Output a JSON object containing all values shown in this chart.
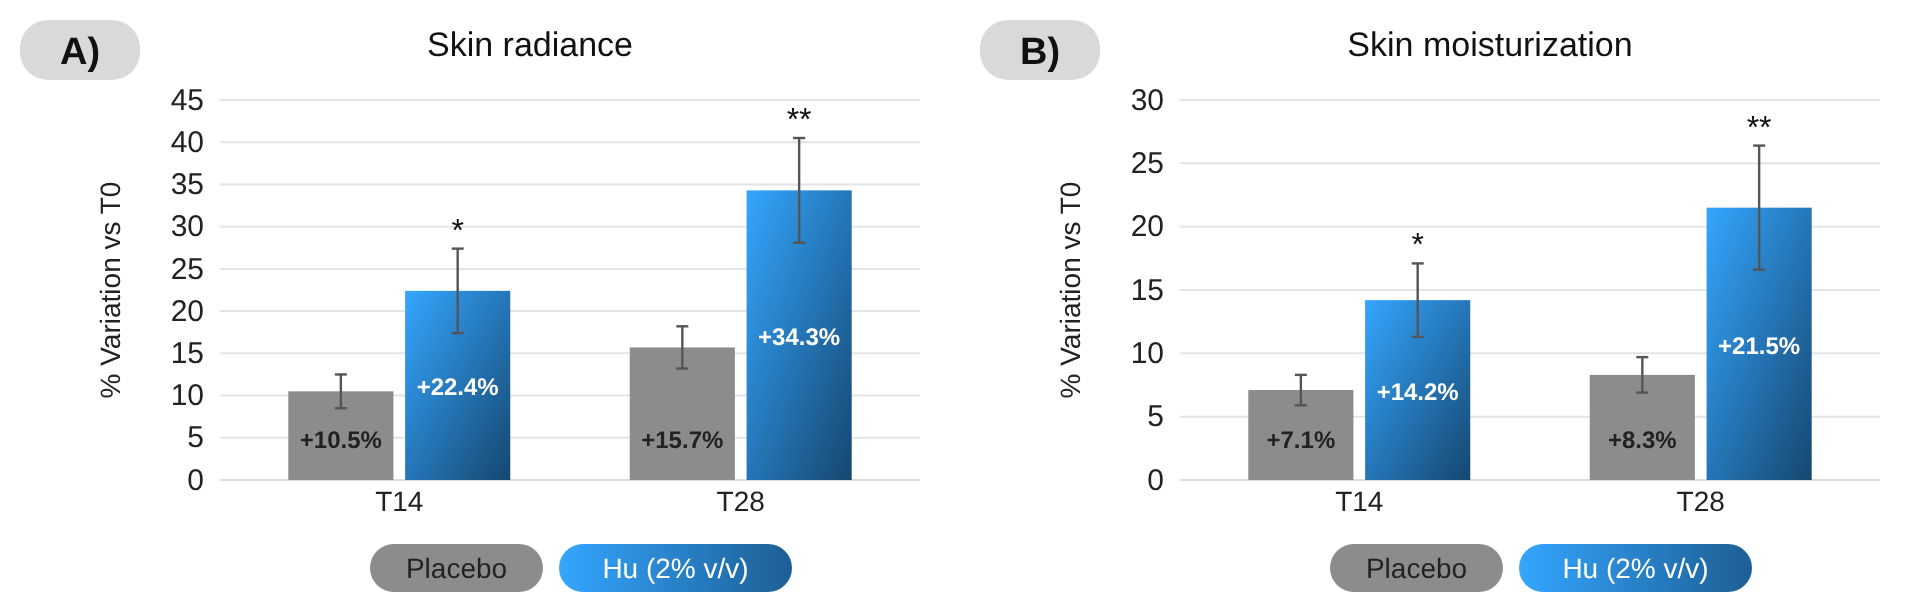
{
  "chart_data": [
    {
      "type": "bar",
      "title": "Skin radiance",
      "ylabel": "% Variation vs T0",
      "categories": [
        "T14",
        "T28"
      ],
      "series": [
        {
          "name": "Placebo",
          "color": "#8c8c8c",
          "values": [
            10.5,
            15.7
          ],
          "errors": [
            2,
            2.5
          ],
          "value_labels": [
            "+10.5%",
            "+15.7%"
          ]
        },
        {
          "name": "Hu (2% v/v)",
          "color": "#2a86d4",
          "values": [
            22.4,
            34.3
          ],
          "errors": [
            5,
            6.2
          ],
          "value_labels": [
            "+22.4%",
            "+34.3%"
          ]
        }
      ],
      "ylim": [
        0,
        45
      ],
      "yticks": [
        0,
        5,
        10,
        15,
        20,
        25,
        30,
        35,
        40,
        45
      ],
      "grid": "y",
      "legend": "bottom",
      "annotations": [
        "A)",
        "*",
        "**"
      ]
    },
    {
      "type": "bar",
      "title": "Skin moisturization",
      "ylabel": "% Variation vs T0",
      "categories": [
        "T14",
        "T28"
      ],
      "series": [
        {
          "name": "Placebo",
          "color": "#8c8c8c",
          "values": [
            7.1,
            8.3
          ],
          "errors": [
            1.2,
            1.4
          ],
          "value_labels": [
            "+7.1%",
            "+8.3%"
          ]
        },
        {
          "name": "Hu (2% v/v)",
          "color": "#2a86d4",
          "values": [
            14.2,
            21.5
          ],
          "errors": [
            2.9,
            4.9
          ],
          "value_labels": [
            "+14.2%",
            "+21.5%"
          ]
        }
      ],
      "ylim": [
        0,
        30
      ],
      "yticks": [
        0,
        5,
        10,
        15,
        20,
        25,
        30
      ],
      "grid": "y",
      "legend": "bottom",
      "annotations": [
        "B)",
        "*",
        "**"
      ]
    }
  ]
}
